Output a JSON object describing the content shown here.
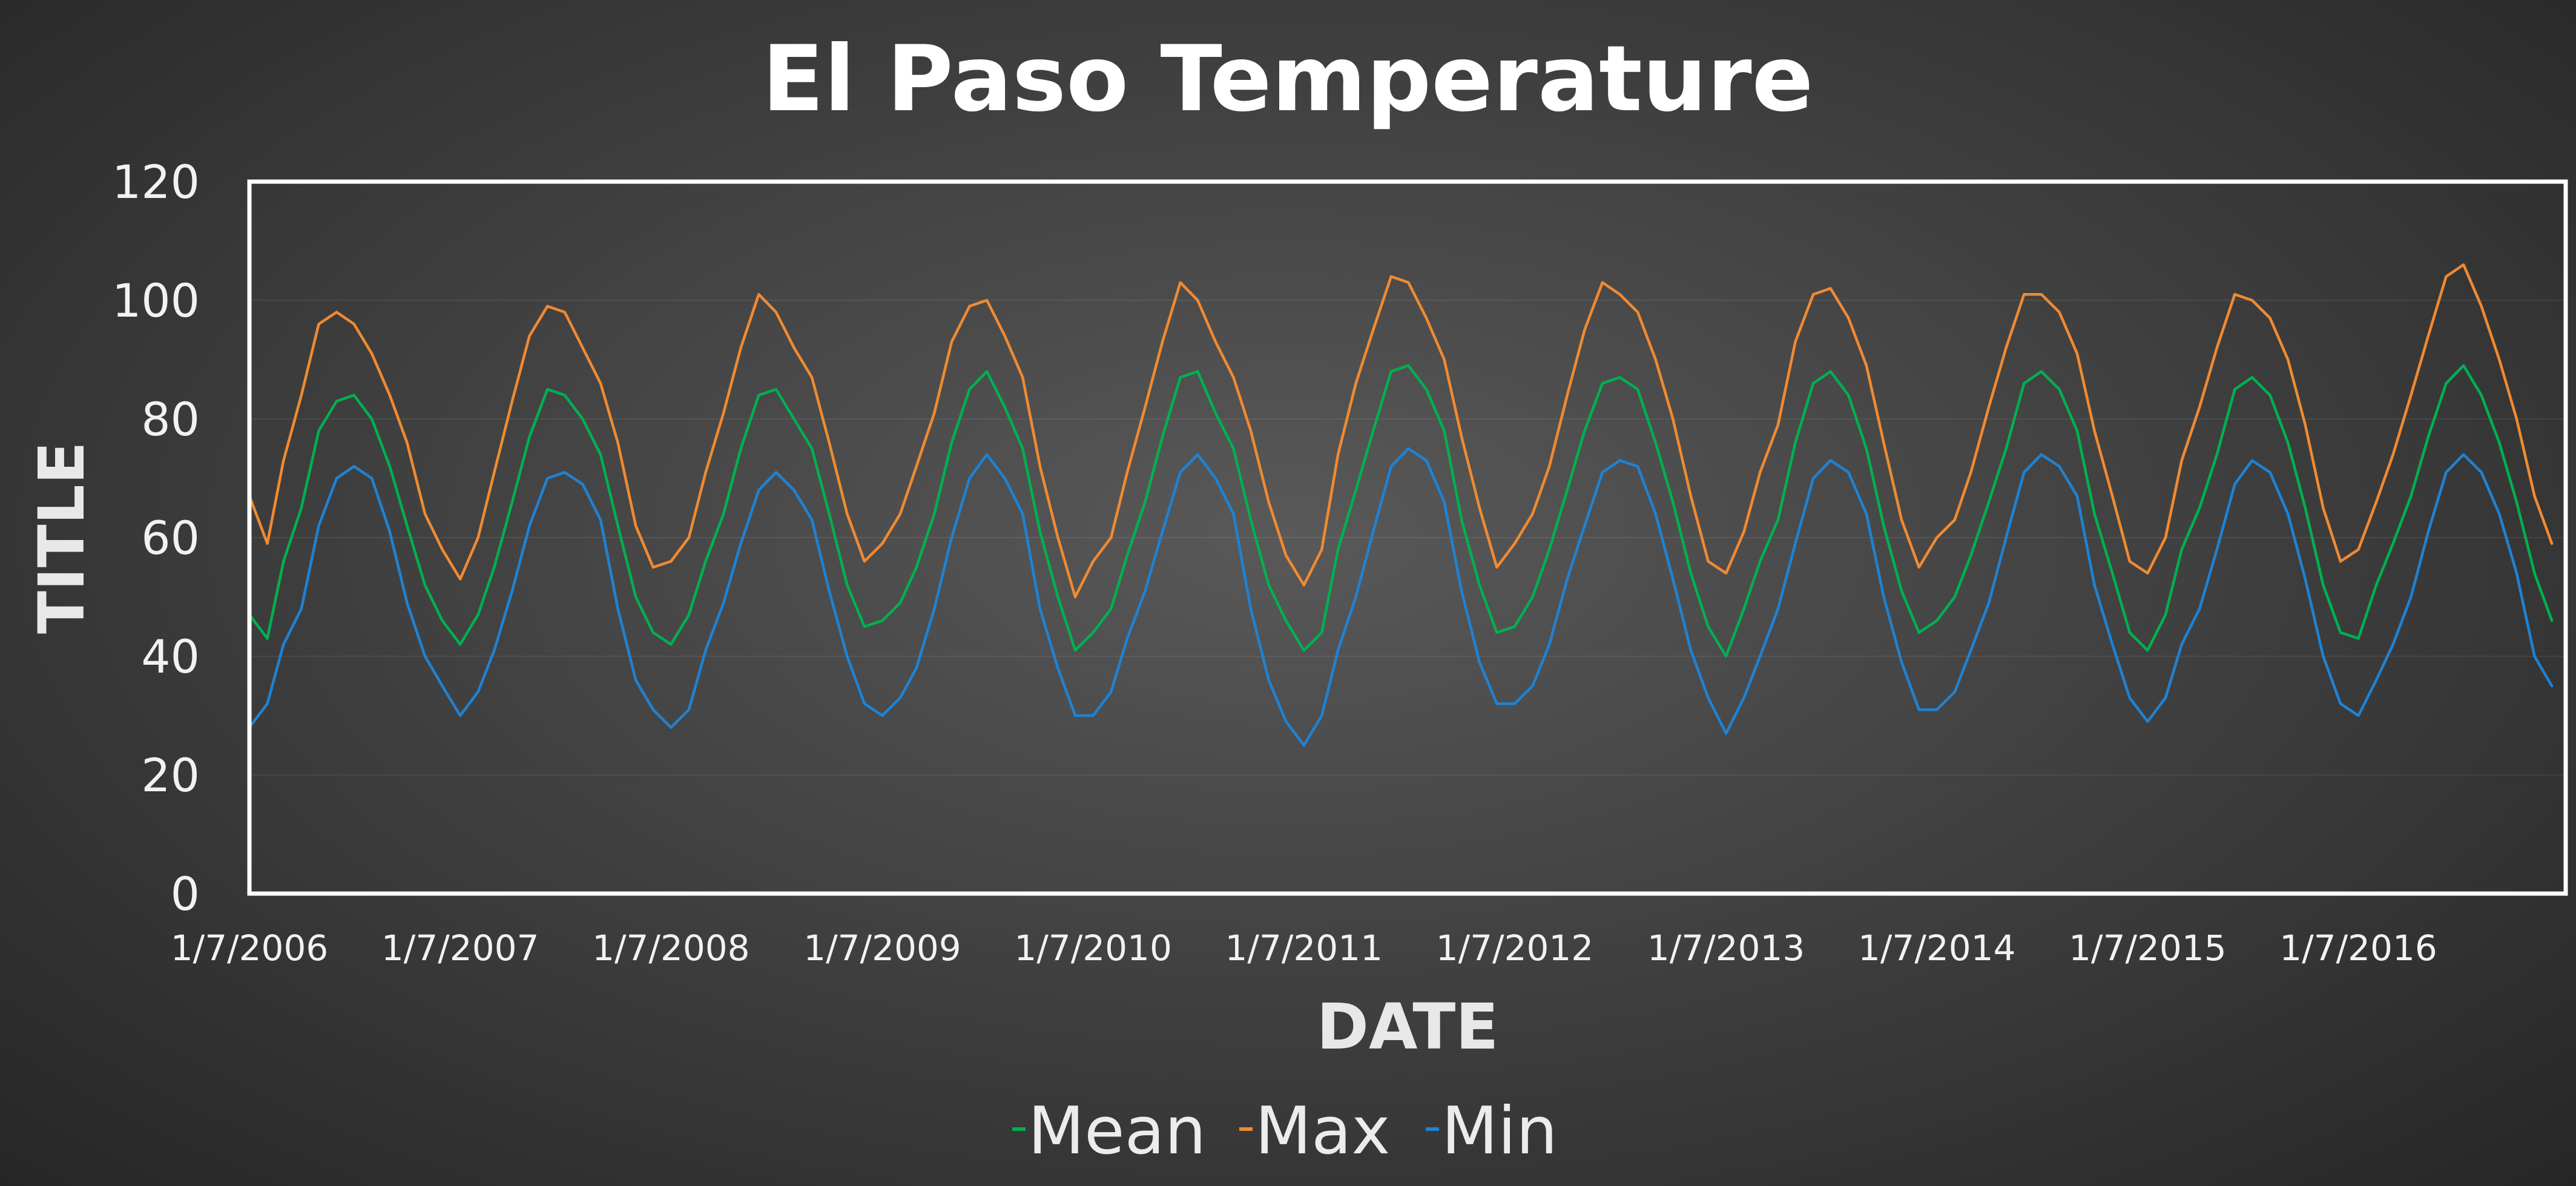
{
  "chart_data": {
    "type": "line",
    "title": "El Paso Temperature",
    "xlabel": "DATE",
    "ylabel": "TITLE",
    "ylim": [
      0,
      120
    ],
    "yticks": [
      0,
      20,
      40,
      60,
      80,
      100,
      120
    ],
    "xlim": [
      "2006-01-07",
      "2016-12-31"
    ],
    "xticks": [
      {
        "date": "2006-01-07",
        "label": "1/7/2006"
      },
      {
        "date": "2007-01-07",
        "label": "1/7/2007"
      },
      {
        "date": "2008-01-07",
        "label": "1/7/2008"
      },
      {
        "date": "2009-01-07",
        "label": "1/7/2009"
      },
      {
        "date": "2010-01-07",
        "label": "1/7/2010"
      },
      {
        "date": "2011-01-07",
        "label": "1/7/2011"
      },
      {
        "date": "2012-01-07",
        "label": "1/7/2012"
      },
      {
        "date": "2013-01-07",
        "label": "1/7/2013"
      },
      {
        "date": "2014-01-07",
        "label": "1/7/2014"
      },
      {
        "date": "2015-01-07",
        "label": "1/7/2015"
      },
      {
        "date": "2016-01-07",
        "label": "1/7/2016"
      }
    ],
    "grid": true,
    "legend_position": "bottom",
    "x": [
      "2006-01-07",
      "2006-02-07",
      "2006-03-07",
      "2006-04-07",
      "2006-05-07",
      "2006-06-07",
      "2006-07-07",
      "2006-08-07",
      "2006-09-07",
      "2006-10-07",
      "2006-11-07",
      "2006-12-07",
      "2007-01-07",
      "2007-02-07",
      "2007-03-07",
      "2007-04-07",
      "2007-05-07",
      "2007-06-07",
      "2007-07-07",
      "2007-08-07",
      "2007-09-07",
      "2007-10-07",
      "2007-11-07",
      "2007-12-07",
      "2008-01-07",
      "2008-02-07",
      "2008-03-07",
      "2008-04-07",
      "2008-05-07",
      "2008-06-07",
      "2008-07-07",
      "2008-08-07",
      "2008-09-07",
      "2008-10-07",
      "2008-11-07",
      "2008-12-07",
      "2009-01-07",
      "2009-02-07",
      "2009-03-07",
      "2009-04-07",
      "2009-05-07",
      "2009-06-07",
      "2009-07-07",
      "2009-08-07",
      "2009-09-07",
      "2009-10-07",
      "2009-11-07",
      "2009-12-07",
      "2010-01-07",
      "2010-02-07",
      "2010-03-07",
      "2010-04-07",
      "2010-05-07",
      "2010-06-07",
      "2010-07-07",
      "2010-08-07",
      "2010-09-07",
      "2010-10-07",
      "2010-11-07",
      "2010-12-07",
      "2011-01-07",
      "2011-02-07",
      "2011-03-07",
      "2011-04-07",
      "2011-05-07",
      "2011-06-07",
      "2011-07-07",
      "2011-08-07",
      "2011-09-07",
      "2011-10-07",
      "2011-11-07",
      "2011-12-07",
      "2012-01-07",
      "2012-02-07",
      "2012-03-07",
      "2012-04-07",
      "2012-05-07",
      "2012-06-07",
      "2012-07-07",
      "2012-08-07",
      "2012-09-07",
      "2012-10-07",
      "2012-11-07",
      "2012-12-07",
      "2013-01-07",
      "2013-02-07",
      "2013-03-07",
      "2013-04-07",
      "2013-05-07",
      "2013-06-07",
      "2013-07-07",
      "2013-08-07",
      "2013-09-07",
      "2013-10-07",
      "2013-11-07",
      "2013-12-07",
      "2014-01-07",
      "2014-02-07",
      "2014-03-07",
      "2014-04-07",
      "2014-05-07",
      "2014-06-07",
      "2014-07-07",
      "2014-08-07",
      "2014-09-07",
      "2014-10-07",
      "2014-11-07",
      "2014-12-07",
      "2015-01-07",
      "2015-02-07",
      "2015-03-07",
      "2015-04-07",
      "2015-05-07",
      "2015-06-07",
      "2015-07-07",
      "2015-08-07",
      "2015-09-07",
      "2015-10-07",
      "2015-11-07",
      "2015-12-07",
      "2016-01-07",
      "2016-02-07",
      "2016-03-07",
      "2016-04-07",
      "2016-05-07",
      "2016-06-07",
      "2016-07-07",
      "2016-08-07",
      "2016-09-07",
      "2016-10-07",
      "2016-11-07",
      "2016-12-07"
    ],
    "series": [
      {
        "name": "Mean",
        "color": "#00b050",
        "values": [
          47,
          43,
          56,
          65,
          78,
          83,
          84,
          80,
          72,
          62,
          52,
          46,
          42,
          47,
          55,
          66,
          77,
          85,
          84,
          80,
          74,
          62,
          50,
          44,
          42,
          47,
          56,
          64,
          75,
          84,
          85,
          80,
          75,
          64,
          52,
          45,
          46,
          49,
          55,
          64,
          76,
          85,
          88,
          82,
          75,
          61,
          50,
          41,
          44,
          48,
          57,
          66,
          77,
          87,
          88,
          81,
          75,
          63,
          52,
          46,
          41,
          44,
          58,
          68,
          78,
          88,
          89,
          85,
          78,
          63,
          52,
          44,
          45,
          50,
          58,
          68,
          78,
          86,
          87,
          85,
          76,
          66,
          54,
          45,
          40,
          48,
          56,
          63,
          76,
          86,
          88,
          84,
          75,
          62,
          51,
          44,
          46,
          50,
          57,
          66,
          75,
          86,
          88,
          85,
          78,
          64,
          54,
          44,
          41,
          47,
          58,
          65,
          74,
          85,
          87,
          84,
          76,
          65,
          52,
          44,
          43,
          52,
          59,
          67,
          77,
          86,
          89,
          84,
          76,
          66,
          54,
          46
        ]
      },
      {
        "name": "Max",
        "color": "#f08a32",
        "values": [
          67,
          59,
          73,
          84,
          96,
          98,
          96,
          91,
          84,
          76,
          64,
          58,
          53,
          60,
          71,
          83,
          94,
          99,
          98,
          92,
          86,
          76,
          62,
          55,
          56,
          60,
          71,
          81,
          92,
          101,
          98,
          92,
          87,
          76,
          64,
          56,
          59,
          64,
          72,
          81,
          93,
          99,
          100,
          94,
          87,
          72,
          60,
          50,
          56,
          60,
          71,
          82,
          93,
          103,
          100,
          93,
          87,
          78,
          66,
          57,
          52,
          58,
          74,
          86,
          95,
          104,
          103,
          97,
          90,
          77,
          65,
          55,
          59,
          64,
          72,
          84,
          95,
          103,
          101,
          98,
          90,
          80,
          67,
          56,
          54,
          61,
          71,
          79,
          93,
          101,
          102,
          97,
          89,
          76,
          63,
          55,
          60,
          63,
          71,
          82,
          92,
          101,
          101,
          98,
          91,
          78,
          67,
          56,
          54,
          60,
          73,
          82,
          92,
          101,
          100,
          97,
          90,
          79,
          65,
          56,
          58,
          66,
          74,
          84,
          94,
          104,
          106,
          99,
          90,
          80,
          67,
          59
        ]
      },
      {
        "name": "Min",
        "color": "#1f82d2",
        "values": [
          28,
          32,
          42,
          48,
          62,
          70,
          72,
          70,
          61,
          49,
          40,
          35,
          30,
          34,
          41,
          51,
          62,
          70,
          71,
          69,
          63,
          48,
          36,
          31,
          28,
          31,
          41,
          49,
          59,
          68,
          71,
          68,
          63,
          51,
          40,
          32,
          30,
          33,
          38,
          48,
          60,
          70,
          74,
          70,
          64,
          48,
          38,
          30,
          30,
          34,
          43,
          51,
          61,
          71,
          74,
          70,
          64,
          48,
          36,
          29,
          25,
          30,
          41,
          50,
          61,
          72,
          75,
          73,
          66,
          51,
          39,
          32,
          32,
          35,
          42,
          53,
          62,
          71,
          73,
          72,
          64,
          53,
          41,
          33,
          27,
          33,
          40,
          48,
          59,
          70,
          73,
          71,
          64,
          50,
          39,
          31,
          31,
          34,
          41,
          49,
          60,
          71,
          74,
          72,
          67,
          52,
          42,
          33,
          29,
          33,
          42,
          48,
          58,
          69,
          73,
          71,
          64,
          53,
          40,
          32,
          30,
          36,
          42,
          50,
          61,
          71,
          74,
          71,
          64,
          54,
          40,
          35
        ]
      }
    ]
  }
}
